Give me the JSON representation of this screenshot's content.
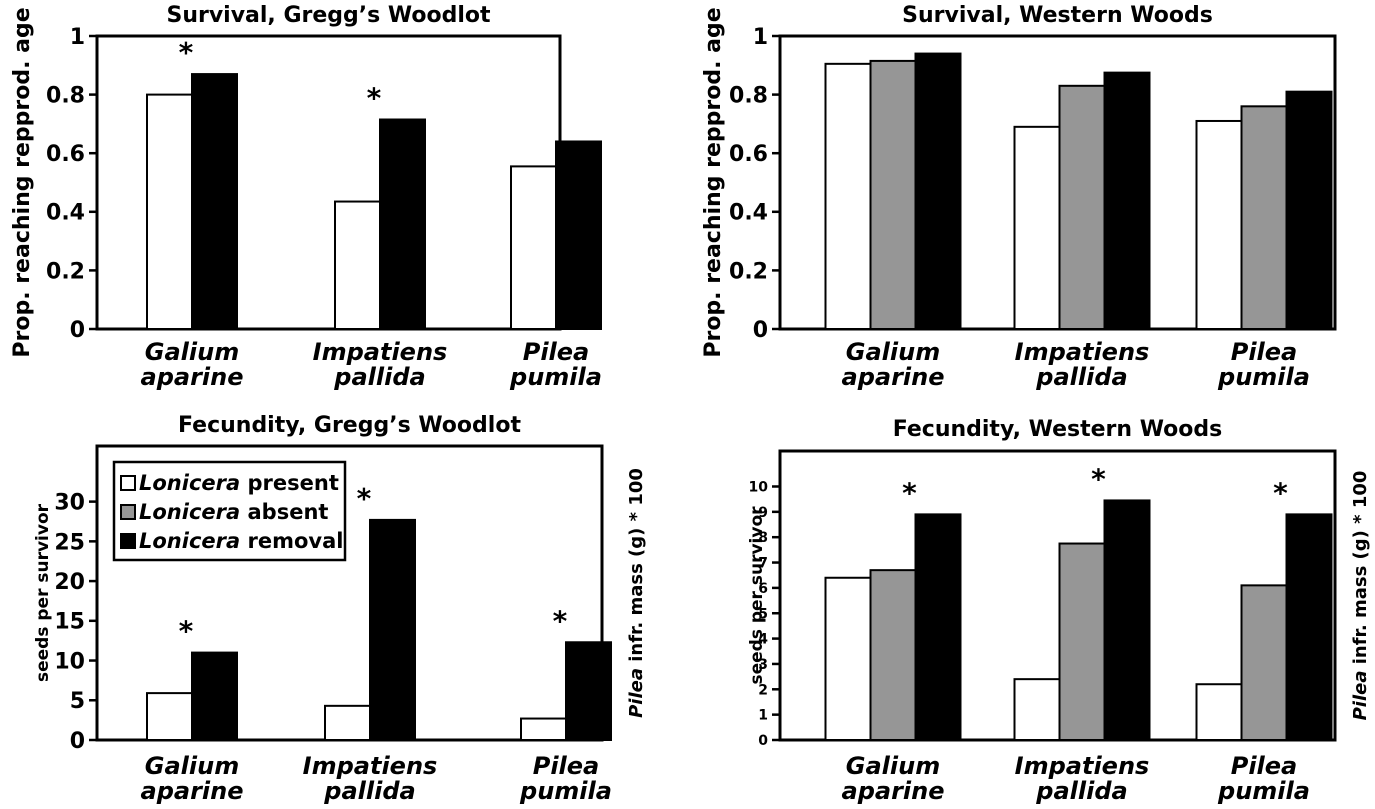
{
  "legend": {
    "items": [
      {
        "genus": "Lonicera",
        "label": " present",
        "color": "#ffffff"
      },
      {
        "genus": "Lonicera",
        "label": " absent",
        "color": "#969696"
      },
      {
        "genus": "Lonicera",
        "label": " removal",
        "color": "#000000"
      }
    ]
  },
  "chart_data": [
    {
      "type": "bar",
      "title": "Survival, Gregg’s Woodlot",
      "ylabel": "Prop. reaching repprod. age",
      "ylim": [
        0,
        1
      ],
      "yticks": [
        "0",
        "0.2",
        "0.4",
        "0.6",
        "0.8",
        "1"
      ],
      "categories": [
        [
          "Galium",
          "aparine"
        ],
        [
          "Impatiens",
          "pallida"
        ],
        [
          "Pilea",
          "pumila"
        ]
      ],
      "series": [
        {
          "color": "#ffffff",
          "values": [
            0.8,
            0.435,
            0.555
          ]
        },
        {
          "color": "#000000",
          "values": [
            0.87,
            0.715,
            0.64
          ]
        }
      ],
      "significance": [
        "*",
        "*",
        ""
      ]
    },
    {
      "type": "bar",
      "title": "Survival, Western Woods",
      "ylabel": "Prop. reaching repprod. age",
      "ylim": [
        0,
        1
      ],
      "yticks": [
        "0",
        "0.2",
        "0.4",
        "0.6",
        "0.8",
        "1"
      ],
      "categories": [
        [
          "Galium",
          "aparine"
        ],
        [
          "Impatiens",
          "pallida"
        ],
        [
          "Pilea",
          "pumila"
        ]
      ],
      "series": [
        {
          "color": "#ffffff",
          "values": [
            0.905,
            0.69,
            0.71
          ]
        },
        {
          "color": "#969696",
          "values": [
            0.915,
            0.83,
            0.76
          ]
        },
        {
          "color": "#000000",
          "values": [
            0.94,
            0.875,
            0.81
          ]
        }
      ],
      "significance": [
        "",
        "",
        ""
      ]
    },
    {
      "type": "bar",
      "title": "Fecundity, Gregg’s Woodlot",
      "ylabel": "seeds per survivor",
      "ylabel_right_italic": "Pilea",
      "ylabel_right": " infr. mass (g) * 100",
      "ylim": [
        0,
        37
      ],
      "yticks": [
        "0",
        "5",
        "10",
        "15",
        "20",
        "25",
        "30"
      ],
      "categories": [
        [
          "Galium",
          "aparine"
        ],
        [
          "Impatiens",
          "pallida"
        ],
        [
          "Pilea",
          "pumila"
        ]
      ],
      "series": [
        {
          "color": "#ffffff",
          "values": [
            5.9,
            4.3,
            2.7
          ]
        },
        {
          "color": "#000000",
          "values": [
            11.0,
            27.7,
            12.3
          ]
        }
      ],
      "significance": [
        "*",
        "*",
        "*"
      ]
    },
    {
      "type": "bar",
      "title": "Fecundity, Western Woods",
      "ylabel": "seeds per survivor",
      "ylabel_right_italic": "Pilea",
      "ylabel_right": " infr. mass (g) * 100",
      "ylim": [
        0,
        11.4
      ],
      "yticks": [
        "0",
        "1",
        "2",
        "3",
        "4",
        "5",
        "6",
        "7",
        "8",
        "9",
        "10"
      ],
      "categories": [
        [
          "Galium",
          "aparine"
        ],
        [
          "Impatiens",
          "pallida"
        ],
        [
          "Pilea",
          "pumila"
        ]
      ],
      "series": [
        {
          "color": "#ffffff",
          "values": [
            6.4,
            2.4,
            2.2
          ]
        },
        {
          "color": "#969696",
          "values": [
            6.7,
            7.75,
            6.1
          ]
        },
        {
          "color": "#000000",
          "values": [
            8.9,
            9.45,
            8.9
          ]
        }
      ],
      "significance": [
        "*",
        "*",
        "*"
      ]
    }
  ]
}
